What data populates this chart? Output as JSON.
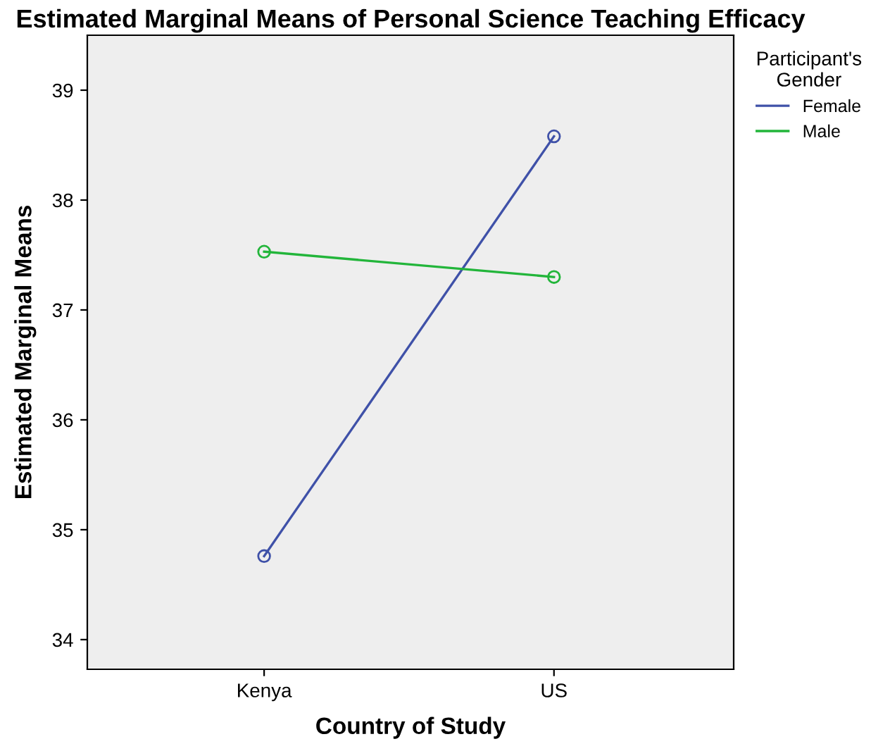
{
  "chart_data": {
    "type": "line",
    "title": "Estimated Marginal Means of Personal Science Teaching Efficacy",
    "xlabel": "Country of Study",
    "ylabel": "Estimated Marginal Means",
    "legend_title": "Participant's\nGender",
    "categories": [
      "Kenya",
      "US"
    ],
    "series": [
      {
        "name": "Female",
        "color": "#3f51a8",
        "values": [
          34.76,
          38.58
        ]
      },
      {
        "name": "Male",
        "color": "#22b53a",
        "values": [
          37.53,
          37.3
        ]
      }
    ],
    "ylim": [
      33.73,
      39.5
    ],
    "yticks": [
      34,
      35,
      36,
      37,
      38,
      39
    ],
    "marker": "circle",
    "line_style": "solid",
    "legend": "right",
    "grid": false
  }
}
